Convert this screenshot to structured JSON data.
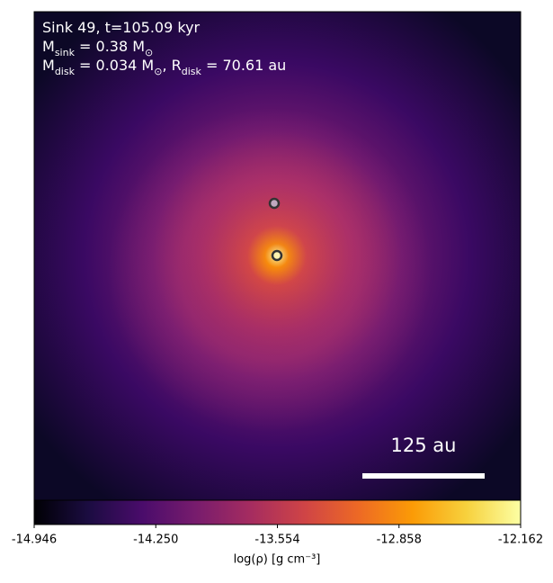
{
  "chart_data": {
    "type": "image",
    "annotations": [
      [
        {
          "text": "Sink 49, t=105.09 kyr"
        }
      ],
      [
        {
          "text": "M"
        },
        {
          "sub": "sink"
        },
        {
          "text": " = 0.38 M"
        },
        {
          "sub": "⊙"
        }
      ],
      [
        {
          "text": "M"
        },
        {
          "sub": "disk"
        },
        {
          "text": " = 0.034 M"
        },
        {
          "sub": "⊙"
        },
        {
          "text": ", R"
        },
        {
          "sub": "disk"
        },
        {
          "text": " = 70.61 au"
        }
      ]
    ],
    "scale_bar_label": "125 au",
    "colormap": "inferno",
    "colorbar": {
      "label": "log(ρ) [g cm⁻³]",
      "lim": [
        -14.946,
        -12.162
      ],
      "ticks": [
        -14.946,
        {
          "value": -14.25,
          "label": "-14.250"
        },
        -13.554,
        -12.858,
        -12.162
      ]
    }
  }
}
